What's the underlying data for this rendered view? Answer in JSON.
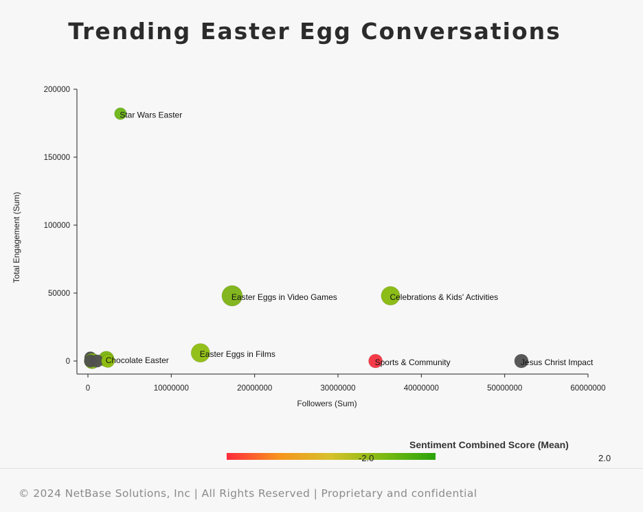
{
  "chart_data": {
    "type": "scatter",
    "title": "Trending Easter Egg Conversations",
    "xlabel": "Followers (Sum)",
    "ylabel": "Total Engagement (Sum)",
    "xlim": [
      -1000000,
      60000000
    ],
    "ylim": [
      -10000,
      200000
    ],
    "xticks": [
      0,
      10000000,
      20000000,
      30000000,
      40000000,
      50000000,
      60000000
    ],
    "xtick_labels": [
      "0",
      "10000000",
      "20000000",
      "30000000",
      "40000000",
      "50000000",
      "60000000"
    ],
    "yticks": [
      0,
      50000,
      100000,
      150000,
      200000
    ],
    "ytick_labels": [
      "0",
      "50000",
      "100000",
      "150000",
      "200000"
    ],
    "grid": false,
    "color_legend": {
      "title": "Sentiment Combined Score (Mean)",
      "min_label": "-2.0",
      "max_label": "2.0",
      "colors": [
        "#ff2a3c",
        "#f7941d",
        "#d6c12a",
        "#7cba12",
        "#2aa30a"
      ]
    },
    "points": [
      {
        "label": "Star Wars Easter",
        "x": 3900000,
        "y": 182000,
        "size": 0.3,
        "color": "#6bb516"
      },
      {
        "label": "Easter Eggs in Video Games",
        "x": 17300000,
        "y": 48000,
        "size": 1.0,
        "color": "#7cb214"
      },
      {
        "label": "Celebrations & Kids' Activities",
        "x": 36300000,
        "y": 48000,
        "size": 0.85,
        "color": "#86b80c"
      },
      {
        "label": "Easter Eggs in Films",
        "x": 13500000,
        "y": 6000,
        "size": 0.85,
        "color": "#8dbd10"
      },
      {
        "label": "Chocolate Easter",
        "x": 2200000,
        "y": 1500,
        "size": 0.6,
        "color": "#79b20e"
      },
      {
        "label": "Sports & Community",
        "x": 34500000,
        "y": 0,
        "size": 0.45,
        "color": "#f5303e"
      },
      {
        "label": "Jesus Christ Impact",
        "x": 52000000,
        "y": 0,
        "size": 0.45,
        "color": "#505050"
      },
      {
        "label": "",
        "x": 300000,
        "y": 2500,
        "size": 0.3,
        "color": "#4a4a4a"
      },
      {
        "label": "",
        "x": 500000,
        "y": 0,
        "size": 0.6,
        "color": "#7cb214"
      },
      {
        "label": "",
        "x": 300000,
        "y": 0,
        "size": 0.35,
        "color": "#505050"
      },
      {
        "label": "",
        "x": 1100000,
        "y": 0,
        "size": 0.35,
        "color": "#505050"
      },
      {
        "label": "",
        "x": 2400000,
        "y": 0,
        "size": 0.4,
        "color": "#8dbd10"
      }
    ]
  },
  "footer": {
    "text": "© 2024 NetBase Solutions, Inc | All Rights Reserved | Proprietary and confidential"
  }
}
